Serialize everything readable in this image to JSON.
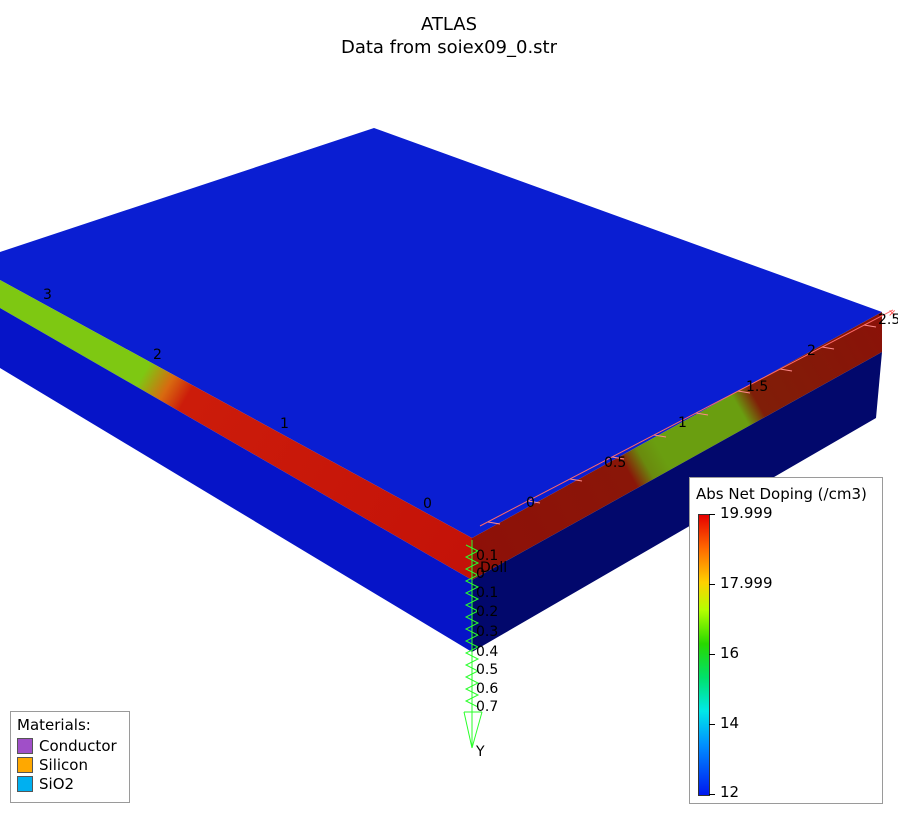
{
  "title": "ATLAS",
  "subtitle": "Data from soiex09_0.str",
  "materials_legend": {
    "header": "Materials:",
    "items": [
      {
        "label": "Conductor",
        "color": "#a04fc8"
      },
      {
        "label": "Silicon",
        "color": "#ffa800"
      },
      {
        "label": "SiO2",
        "color": "#00b0f0"
      }
    ]
  },
  "colorbar": {
    "title": "Abs Net Doping (/cm3)",
    "labels": [
      "19.999",
      "17.999",
      "16",
      "14",
      "12"
    ]
  },
  "axes": {
    "left_axis_ticks": [
      "3",
      "2",
      "1",
      "0"
    ],
    "right_axis_ticks": [
      "0",
      "0.5",
      "1",
      "1.5",
      "2",
      "2.5"
    ],
    "y_axis_ticks": [
      "0.1",
      "0",
      "0.1",
      "0.2",
      "0.3",
      "0.4",
      "0.5",
      "0.6",
      "0.7"
    ],
    "y_axis_label": "Y",
    "overlay_label": "Doll"
  },
  "colors": {
    "sio2_top": "#0a1cd0",
    "sio2_left_face": "#0614c8",
    "sio2_right_face": "#02086e",
    "silicon_high": "#c81a0a",
    "silicon_mid": "#7ac40e",
    "axis": "#2aff2a"
  }
}
